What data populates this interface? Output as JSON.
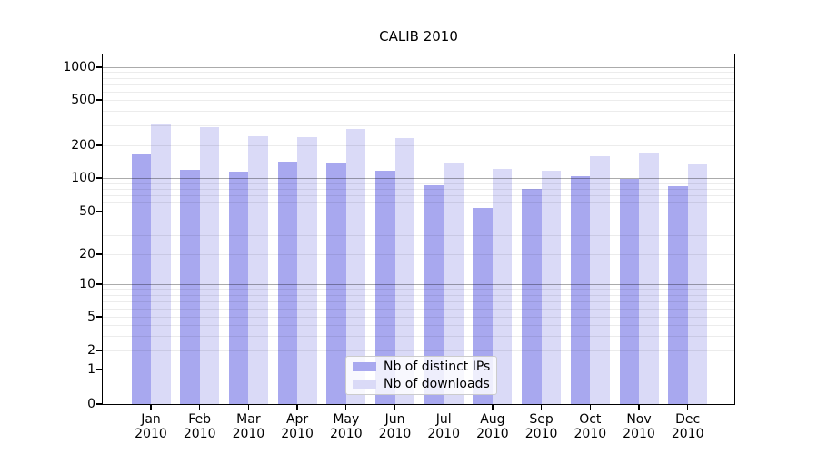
{
  "chart_data": {
    "type": "bar",
    "title": "CALIB 2010",
    "categories": [
      "Jan 2010",
      "Feb 2010",
      "Mar 2010",
      "Apr 2010",
      "May 2010",
      "Jun 2010",
      "Jul 2010",
      "Aug 2010",
      "Sep 2010",
      "Oct 2010",
      "Nov 2010",
      "Dec 2010"
    ],
    "series": [
      {
        "name": "Nb of distinct IPs",
        "color": "#a8a8ef",
        "values": [
          165,
          120,
          114,
          141,
          140,
          116,
          86,
          54,
          80,
          103,
          98,
          84
        ]
      },
      {
        "name": "Nb of downloads",
        "color": "#dadaf7",
        "values": [
          307,
          290,
          240,
          237,
          277,
          232,
          138,
          121,
          117,
          160,
          172,
          134
        ]
      }
    ],
    "yscale": "symlog",
    "yticks": [
      0,
      1,
      2,
      5,
      10,
      20,
      50,
      100,
      200,
      500,
      1000
    ],
    "ylim": [
      0,
      1300
    ],
    "xlabel": "",
    "ylabel": "",
    "grid": "horizontal, minor and major",
    "legend_position": "lower center inside plot"
  },
  "legend": {
    "entries": [
      {
        "label": "Nb of distinct IPs",
        "color": "#a8a8ef"
      },
      {
        "label": "Nb of downloads",
        "color": "#dadaf7"
      }
    ]
  },
  "colors": {
    "series_dark": "#a8a8ef",
    "series_light": "#dadaf7",
    "spine": "#000000",
    "background": "#ffffff"
  }
}
